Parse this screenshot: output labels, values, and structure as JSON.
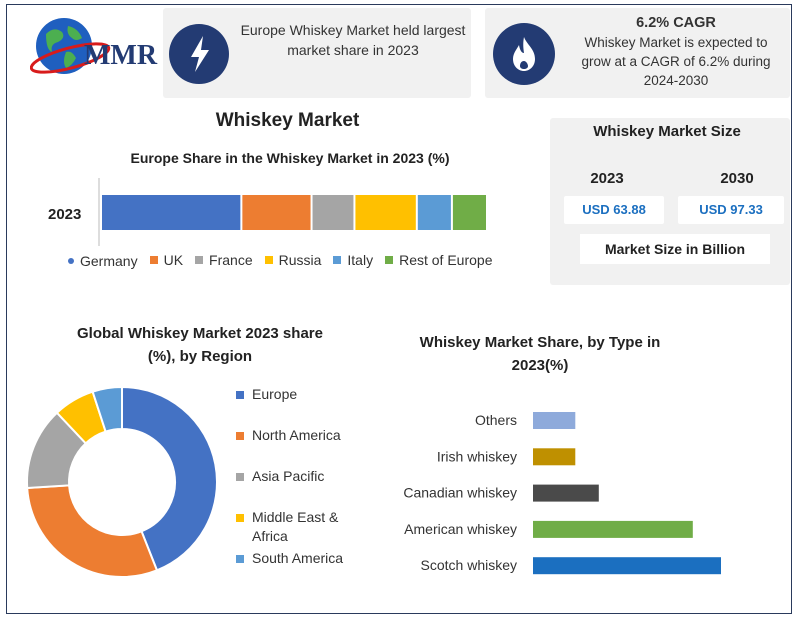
{
  "header": {
    "logo_text": "MMR",
    "card1": {
      "text_line1": "Europe Whiskey Market held largest",
      "text_line2": "market share in 2023",
      "icon": "lightning-icon"
    },
    "card2": {
      "title": "6.2% CAGR",
      "line1": "Whiskey Market is expected to",
      "line2": "grow at a CAGR of 6.2% during",
      "line3": "2024-2030",
      "icon": "flame-icon"
    }
  },
  "main_title": "Whiskey Market",
  "market_size": {
    "title": "Whiskey Market Size",
    "year1": "2023",
    "year2": "2030",
    "value1": "USD 63.88",
    "value2": "USD 97.33",
    "footer": "Market Size in Billion"
  },
  "colors": {
    "blue": "#4472c4",
    "orange": "#ed7d31",
    "gray": "#a5a5a5",
    "gold": "#ffc000",
    "lightblue": "#5b9bd5",
    "green": "#70ad47",
    "accent": "#1b6fc0",
    "navy": "#233b73"
  },
  "chart_data": [
    {
      "id": "europe",
      "type": "bar",
      "stacked": true,
      "orientation": "horizontal",
      "title": "Europe Share in the Whiskey Market in 2023 (%)",
      "categories": [
        "2023"
      ],
      "series": [
        {
          "name": "Germany",
          "values": [
            36
          ],
          "color": "#4472c4"
        },
        {
          "name": "UK",
          "values": [
            18
          ],
          "color": "#ed7d31"
        },
        {
          "name": "France",
          "values": [
            11
          ],
          "color": "#a5a5a5"
        },
        {
          "name": "Russia",
          "values": [
            16
          ],
          "color": "#ffc000"
        },
        {
          "name": "Italy",
          "values": [
            9
          ],
          "color": "#5b9bd5"
        },
        {
          "name": "Rest of Europe",
          "values": [
            9
          ],
          "color": "#70ad47"
        }
      ],
      "legend": "bottom"
    },
    {
      "id": "region",
      "type": "pie",
      "donut": true,
      "title_line1": "Global Whiskey Market 2023 share",
      "title_line2": "(%), by Region",
      "slices": [
        {
          "label": "Europe",
          "value": 44,
          "color": "#4472c4"
        },
        {
          "label": "North America",
          "value": 30,
          "color": "#ed7d31"
        },
        {
          "label": "Asia Pacific",
          "value": 14,
          "color": "#a5a5a5"
        },
        {
          "label": "Middle East & Africa",
          "label_line1": "Middle East &",
          "label_line2": "Africa",
          "value": 7,
          "color": "#ffc000"
        },
        {
          "label": "South America",
          "value": 5,
          "color": "#5b9bd5"
        }
      ],
      "legend": "right"
    },
    {
      "id": "type",
      "type": "bar",
      "orientation": "horizontal",
      "title_line1": "Whiskey Market Share, by Type in",
      "title_line2": "2023(%)",
      "categories": [
        "Others",
        "Irish whiskey",
        "Canadian whiskey",
        "American whiskey",
        "Scotch whiskey"
      ],
      "values": [
        9,
        9,
        14,
        34,
        40
      ],
      "colors": [
        "#8eaadb",
        "#bf9000",
        "#4a4a4a",
        "#70ad47",
        "#1b6fc0"
      ],
      "xlim": [
        0,
        40
      ]
    }
  ]
}
